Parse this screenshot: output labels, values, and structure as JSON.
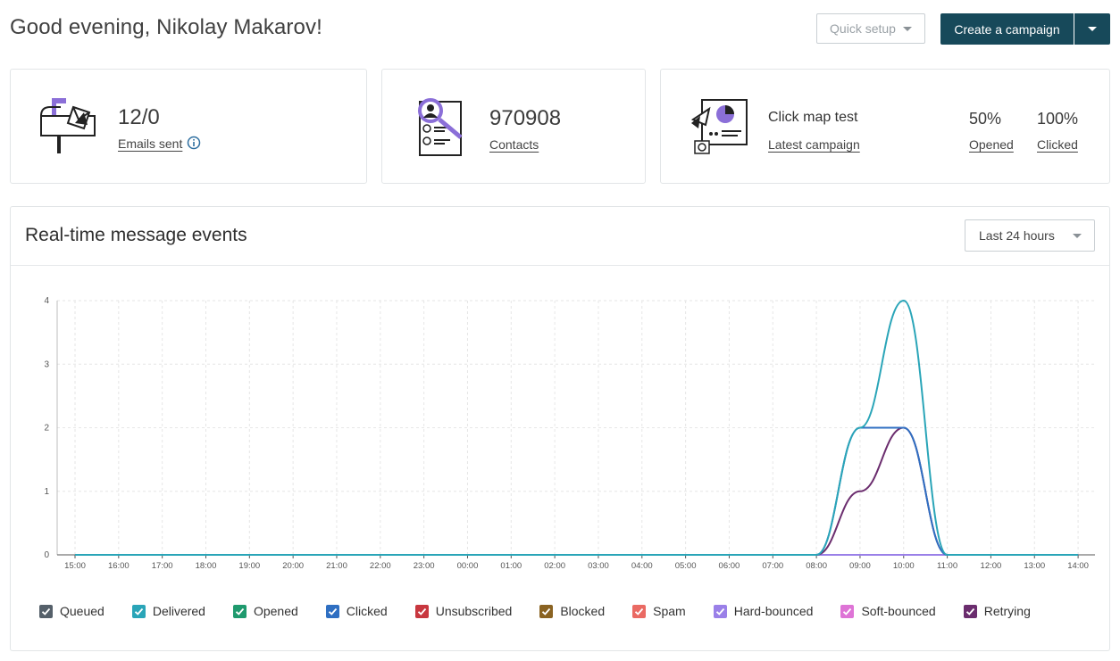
{
  "header": {
    "greeting": "Good evening, Nikolay Makarov!",
    "quick_setup_label": "Quick setup",
    "create_campaign_label": "Create a campaign"
  },
  "cards": {
    "emails": {
      "value": "12/0",
      "link_label": "Emails sent",
      "icon": "mailbox-icon"
    },
    "contacts": {
      "value": "970908",
      "link_label": "Contacts",
      "icon": "contact-search-icon"
    },
    "campaign": {
      "name": "Click map test",
      "link_label": "Latest campaign",
      "opened_value": "50%",
      "opened_label": "Opened",
      "clicked_value": "100%",
      "clicked_label": "Clicked",
      "icon": "campaign-report-icon"
    }
  },
  "events_panel": {
    "title": "Real-time message events",
    "range_label": "Last 24 hours"
  },
  "legend": [
    {
      "label": "Queued",
      "color": "#55606a"
    },
    {
      "label": "Delivered",
      "color": "#2aa5b8"
    },
    {
      "label": "Opened",
      "color": "#1f9a6e"
    },
    {
      "label": "Clicked",
      "color": "#2f6fc2"
    },
    {
      "label": "Unsubscribed",
      "color": "#c8373f"
    },
    {
      "label": "Blocked",
      "color": "#8a6322"
    },
    {
      "label": "Spam",
      "color": "#ea6a63"
    },
    {
      "label": "Hard-bounced",
      "color": "#9a80e8"
    },
    {
      "label": "Soft-bounced",
      "color": "#de74d6"
    },
    {
      "label": "Retrying",
      "color": "#6b2d6e"
    }
  ],
  "chart_data": {
    "type": "line",
    "x": [
      "15:00",
      "16:00",
      "17:00",
      "18:00",
      "19:00",
      "20:00",
      "21:00",
      "22:00",
      "23:00",
      "00:00",
      "01:00",
      "02:00",
      "03:00",
      "04:00",
      "05:00",
      "06:00",
      "07:00",
      "08:00",
      "09:00",
      "10:00",
      "11:00",
      "12:00",
      "13:00",
      "14:00"
    ],
    "ylim": [
      0,
      4
    ],
    "yticks": [
      0,
      1,
      2,
      3,
      4
    ],
    "grid": true,
    "series": [
      {
        "name": "Delivered",
        "color": "#2aa5b8",
        "values": [
          0,
          0,
          0,
          0,
          0,
          0,
          0,
          0,
          0,
          0,
          0,
          0,
          0,
          0,
          0,
          0,
          0,
          0,
          2,
          4,
          0,
          0,
          0,
          0
        ]
      },
      {
        "name": "Clicked",
        "color": "#2f6fc2",
        "values": [
          0,
          0,
          0,
          0,
          0,
          0,
          0,
          0,
          0,
          0,
          0,
          0,
          0,
          0,
          0,
          0,
          0,
          0,
          2,
          2,
          0,
          0,
          0,
          0
        ]
      },
      {
        "name": "Retrying",
        "color": "#6b2d6e",
        "values": [
          0,
          0,
          0,
          0,
          0,
          0,
          0,
          0,
          0,
          0,
          0,
          0,
          0,
          0,
          0,
          0,
          0,
          0,
          1,
          2,
          0,
          0,
          0,
          0
        ]
      },
      {
        "name": "Hard-bounced",
        "color": "#9a80e8",
        "values": [
          0,
          0,
          0,
          0,
          0,
          0,
          0,
          0,
          0,
          0,
          0,
          0,
          0,
          0,
          0,
          0,
          0,
          0,
          0,
          0,
          0,
          0,
          0,
          0
        ]
      }
    ]
  }
}
